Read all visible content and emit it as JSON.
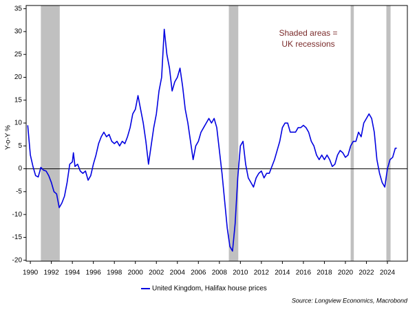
{
  "chart_data": {
    "type": "line",
    "ylabel": "Y-o-Y %",
    "annotation": [
      "Shaded areas =",
      "UK recessions"
    ],
    "source": "Source: Longview Economics, Macrobond",
    "xlim": [
      1989.6,
      2025.9
    ],
    "xticks": [
      1990,
      1992,
      1994,
      1996,
      1998,
      2000,
      2002,
      2004,
      2006,
      2008,
      2010,
      2012,
      2014,
      2016,
      2018,
      2020,
      2022,
      2024
    ],
    "ylim": [
      -20.2,
      35.7
    ],
    "yticks": [
      -20,
      -15,
      -10,
      -5,
      0,
      5,
      10,
      15,
      20,
      25,
      30,
      35
    ],
    "recessions": [
      [
        1991.0,
        1992.8
      ],
      [
        2008.9,
        2009.8
      ],
      [
        2020.5,
        2020.8
      ],
      [
        2023.9,
        2024.3
      ]
    ],
    "recession_color": "#c0c0c0",
    "x": [
      1989.75,
      1990.0,
      1990.25,
      1990.5,
      1990.75,
      1991.0,
      1991.25,
      1991.5,
      1991.75,
      1992.0,
      1992.25,
      1992.5,
      1992.75,
      1993.0,
      1993.25,
      1993.5,
      1993.75,
      1994.0,
      1994.1,
      1994.25,
      1994.5,
      1994.75,
      1995.0,
      1995.25,
      1995.5,
      1995.75,
      1996.0,
      1996.25,
      1996.5,
      1996.75,
      1997.0,
      1997.25,
      1997.5,
      1997.75,
      1998.0,
      1998.25,
      1998.5,
      1998.75,
      1999.0,
      1999.25,
      1999.5,
      1999.75,
      2000.0,
      2000.25,
      2000.5,
      2000.75,
      2001.0,
      2001.25,
      2001.5,
      2001.75,
      2002.0,
      2002.25,
      2002.5,
      2002.75,
      2003.0,
      2003.25,
      2003.5,
      2003.75,
      2004.0,
      2004.25,
      2004.5,
      2004.75,
      2005.0,
      2005.25,
      2005.5,
      2005.75,
      2006.0,
      2006.25,
      2006.5,
      2006.75,
      2007.0,
      2007.25,
      2007.5,
      2007.75,
      2008.0,
      2008.25,
      2008.5,
      2008.75,
      2009.0,
      2009.25,
      2009.5,
      2009.75,
      2010.0,
      2010.25,
      2010.5,
      2010.75,
      2011.0,
      2011.25,
      2011.5,
      2011.75,
      2012.0,
      2012.25,
      2012.5,
      2012.75,
      2013.0,
      2013.25,
      2013.5,
      2013.75,
      2014.0,
      2014.25,
      2014.5,
      2014.75,
      2015.0,
      2015.25,
      2015.5,
      2015.75,
      2016.0,
      2016.25,
      2016.5,
      2016.75,
      2017.0,
      2017.25,
      2017.5,
      2017.75,
      2018.0,
      2018.25,
      2018.5,
      2018.75,
      2019.0,
      2019.25,
      2019.5,
      2019.75,
      2020.0,
      2020.25,
      2020.5,
      2020.75,
      2021.0,
      2021.25,
      2021.5,
      2021.75,
      2022.0,
      2022.25,
      2022.5,
      2022.75,
      2023.0,
      2023.25,
      2023.5,
      2023.75,
      2024.0,
      2024.25,
      2024.5,
      2024.75,
      2024.9
    ],
    "series": [
      {
        "name": "United Kingdom, Halifax house prices",
        "color": "#0000e0",
        "values": [
          9.5,
          3,
          0.5,
          -1.5,
          -1.8,
          0.3,
          -0.3,
          -0.5,
          -1.5,
          -3,
          -5,
          -5.5,
          -8.5,
          -7.5,
          -6,
          -3,
          1,
          1.5,
          3.5,
          0.5,
          1,
          -0.5,
          -1,
          -0.5,
          -2.5,
          -1.5,
          1,
          3,
          5.5,
          7,
          8,
          7,
          7.5,
          6,
          5.5,
          6,
          5,
          6,
          5.5,
          7,
          9,
          12,
          13,
          16,
          13,
          10,
          6,
          1,
          5,
          9,
          12,
          17,
          20,
          30.5,
          25,
          22,
          17,
          19,
          20,
          22,
          18,
          13,
          10,
          6,
          2,
          5,
          6,
          8,
          9,
          10,
          11,
          10,
          11,
          9,
          4,
          -1,
          -7,
          -13,
          -17,
          -18,
          -12,
          -2,
          5,
          6,
          1,
          -2,
          -3,
          -4,
          -2,
          -1,
          -0.5,
          -2,
          -1,
          -1,
          0.5,
          2,
          4,
          6,
          9,
          10,
          10,
          8,
          8,
          8,
          9,
          9,
          9.5,
          9,
          8,
          6,
          5,
          3,
          2,
          3,
          2,
          3,
          2,
          0.5,
          1,
          3,
          4,
          3.5,
          2.5,
          3,
          5,
          6,
          6,
          8,
          7,
          10,
          11,
          12,
          11,
          8,
          2,
          -1,
          -3,
          -4,
          0,
          2,
          2.5,
          4.5,
          4.5
        ]
      }
    ]
  }
}
